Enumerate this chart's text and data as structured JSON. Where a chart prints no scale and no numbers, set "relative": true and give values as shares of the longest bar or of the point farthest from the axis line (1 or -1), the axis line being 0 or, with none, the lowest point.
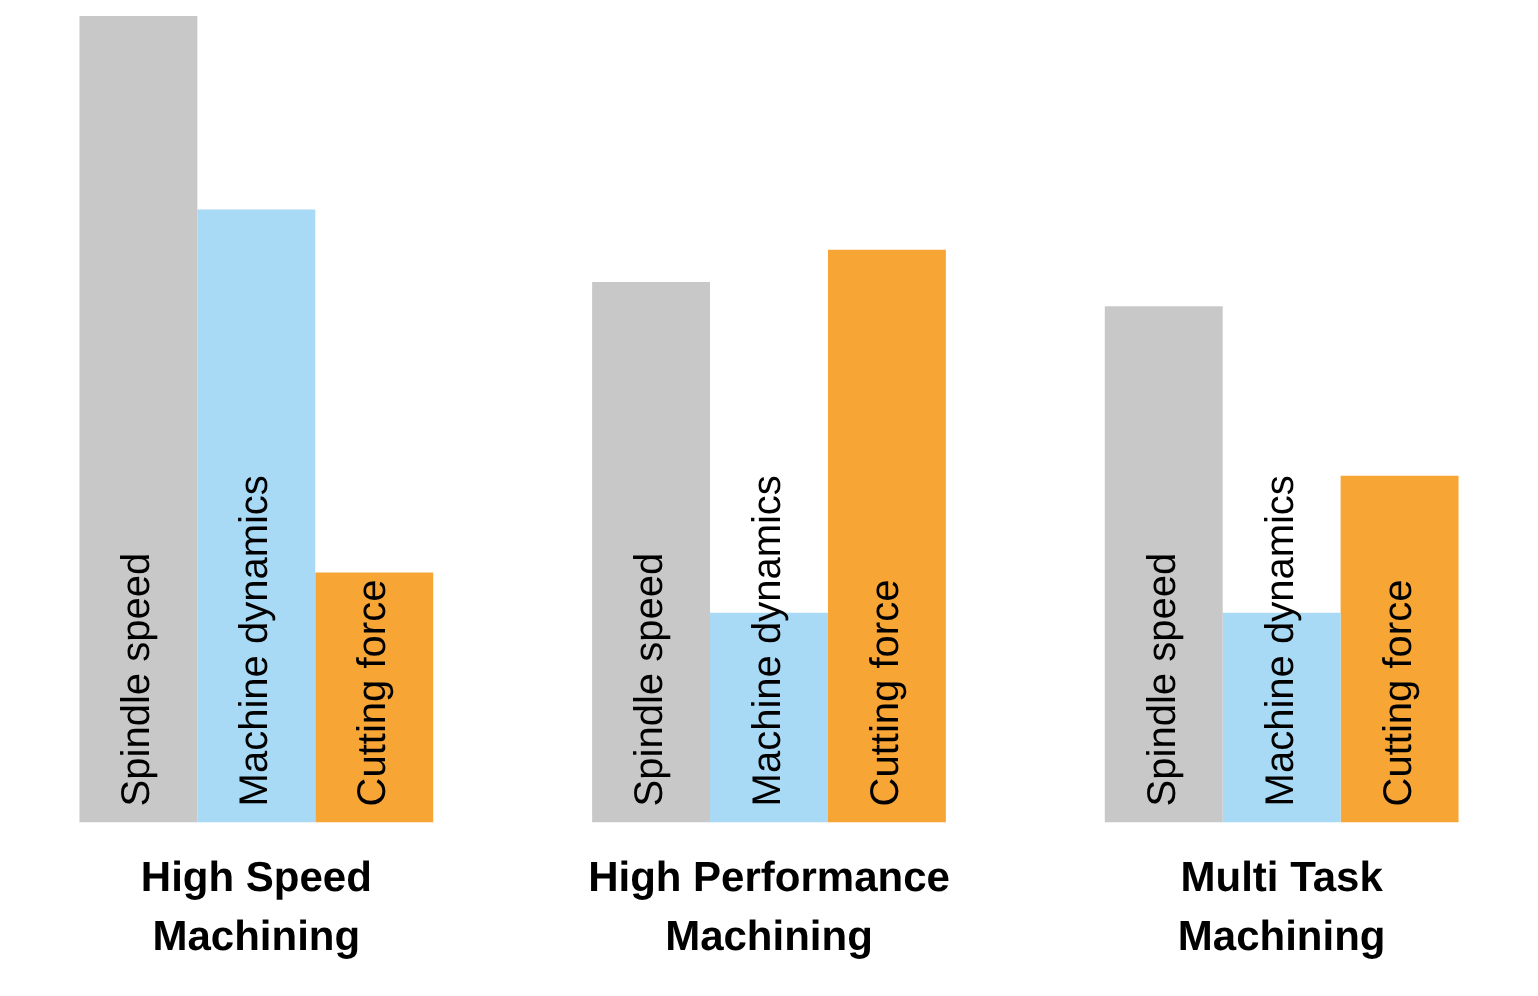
{
  "chart_data": {
    "type": "bar",
    "relative": true,
    "categories": [
      "High Speed Machining",
      "High Performance Machining",
      "Multi Task Machining"
    ],
    "series": [
      {
        "name": "Spindle speed",
        "color": "#c8c8c8",
        "values": [
          1.0,
          0.67,
          0.64
        ]
      },
      {
        "name": "Machine dynamics",
        "color": "#a8daf6",
        "values": [
          0.76,
          0.26,
          0.26
        ]
      },
      {
        "name": "Cutting force",
        "color": "#f7a535",
        "values": [
          0.31,
          0.71,
          0.43
        ]
      }
    ],
    "grid": false,
    "legend": false
  }
}
